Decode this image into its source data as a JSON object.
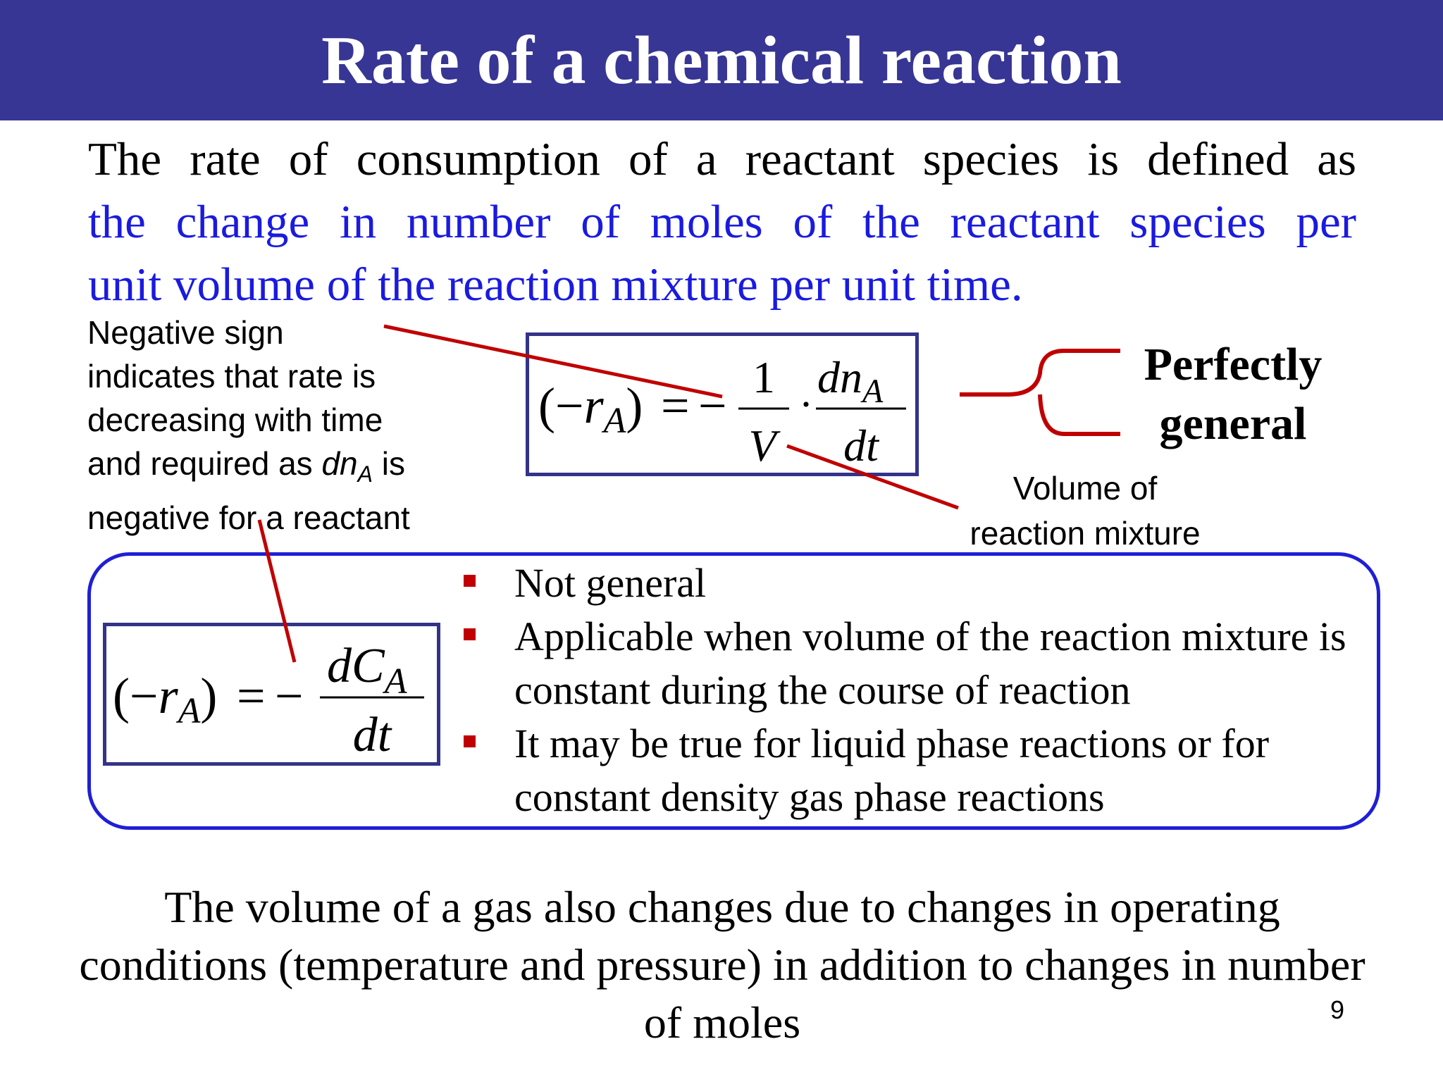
{
  "slide": {
    "title": "Rate of a chemical reaction",
    "intro_black": "The rate of consumption of a reactant species is defined as",
    "intro_blue_1": "the change in number of moles of the reactant species per",
    "intro_blue_2": "unit volume of the reaction mixture per unit time.",
    "note_line1": "Negative sign",
    "note_line2": "indicates that rate is",
    "note_line3": "decreasing with time",
    "note_line4_pre": "and required as ",
    "note_line4_var": "dn",
    "note_line4_sub": "A",
    "note_line4_post": " is",
    "note_line5": "negative for a reactant",
    "general_1": "Perfectly",
    "general_2": "general",
    "volume_note_1": "Volume of",
    "volume_note_2": "reaction mixture",
    "bullets": [
      "Not general",
      "Applicable when volume of the reaction mixture is constant during the course of reaction",
      "It may be true for liquid phase reactions or for constant density gas phase reactions"
    ],
    "footer": "The volume of a gas also changes due to changes in operating conditions (temperature and pressure) in addition to changes in number of moles",
    "page_number": "9"
  },
  "equations": {
    "eq1": {
      "lhs_open": "(−",
      "lhs_var": "r",
      "lhs_sub": "A",
      "lhs_close": ")",
      "equals": "=",
      "minus": "−",
      "frac1_num": "1",
      "frac1_den": "V",
      "dot": "·",
      "frac2_num": "dn",
      "frac2_num_sub": "A",
      "frac2_den": "dt"
    },
    "eq2": {
      "lhs_open": "(−",
      "lhs_var": "r",
      "lhs_sub": "A",
      "lhs_close": ")",
      "equals": "=",
      "minus": "−",
      "frac_num": "dC",
      "frac_num_sub": "A",
      "frac_den": "dt"
    }
  },
  "colors": {
    "header": "#373694",
    "blue_text": "#1a1ae0",
    "box_border": "#33338a",
    "round_box": "#1f1fd6",
    "pointer_line": "#c00000",
    "bullet": "#c00000"
  }
}
